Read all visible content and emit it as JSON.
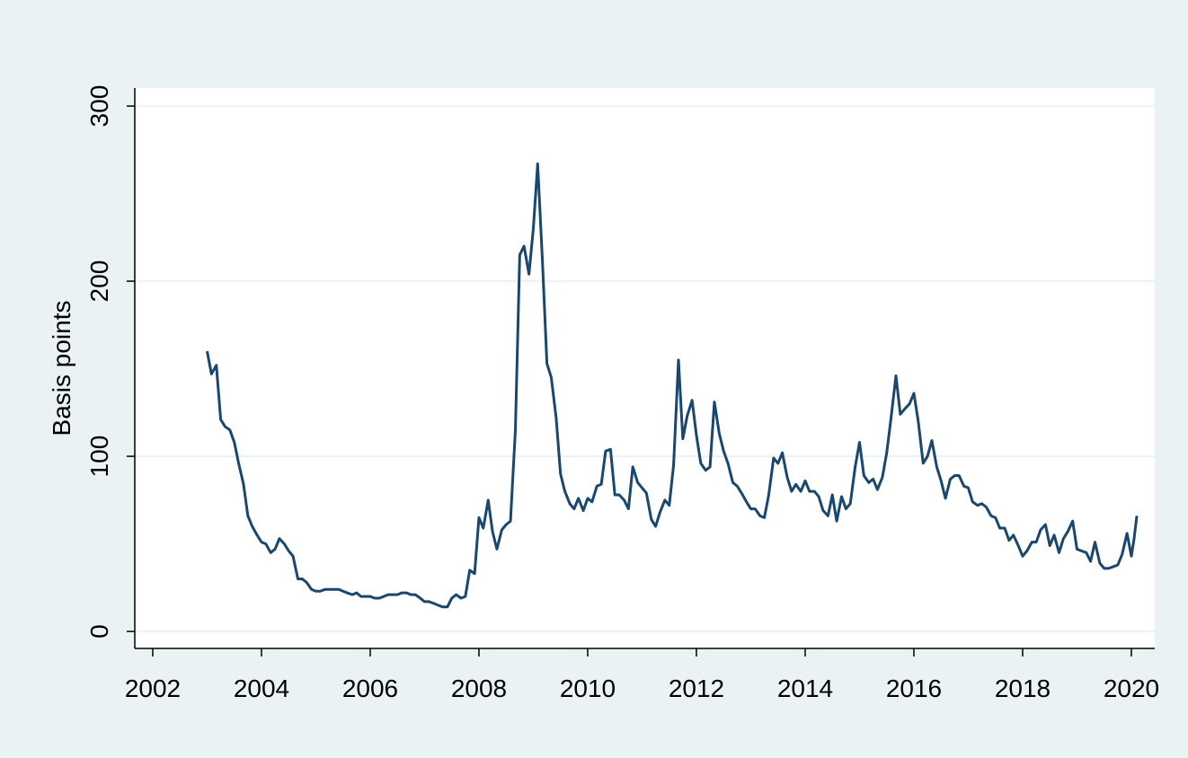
{
  "chart_data": {
    "type": "line",
    "y_label": "Basis points",
    "xlim": [
      2001.67,
      2020.43
    ],
    "ylim": [
      -9.7,
      310.3
    ],
    "xticks": [
      2002,
      2004,
      2006,
      2008,
      2010,
      2012,
      2014,
      2016,
      2018,
      2020
    ],
    "yticks": [
      0,
      100,
      200,
      300
    ],
    "grid": true,
    "x": [
      2003,
      2003.08,
      2003.17,
      2003.25,
      2003.33,
      2003.42,
      2003.5,
      2003.58,
      2003.67,
      2003.75,
      2003.83,
      2003.92,
      2004,
      2004.08,
      2004.17,
      2004.25,
      2004.33,
      2004.42,
      2004.5,
      2004.58,
      2004.67,
      2004.75,
      2004.83,
      2004.92,
      2005,
      2005.08,
      2005.17,
      2005.25,
      2005.33,
      2005.42,
      2005.5,
      2005.58,
      2005.67,
      2005.75,
      2005.83,
      2005.92,
      2006,
      2006.08,
      2006.17,
      2006.25,
      2006.33,
      2006.42,
      2006.5,
      2006.58,
      2006.67,
      2006.75,
      2006.83,
      2006.92,
      2007,
      2007.08,
      2007.17,
      2007.25,
      2007.33,
      2007.42,
      2007.5,
      2007.58,
      2007.67,
      2007.75,
      2007.83,
      2007.92,
      2008,
      2008.08,
      2008.17,
      2008.25,
      2008.33,
      2008.42,
      2008.5,
      2008.58,
      2008.67,
      2008.75,
      2008.83,
      2008.92,
      2009,
      2009.08,
      2009.17,
      2009.25,
      2009.33,
      2009.42,
      2009.5,
      2009.58,
      2009.67,
      2009.75,
      2009.83,
      2009.92,
      2010,
      2010.08,
      2010.17,
      2010.25,
      2010.33,
      2010.42,
      2010.5,
      2010.58,
      2010.67,
      2010.75,
      2010.83,
      2010.92,
      2011,
      2011.08,
      2011.17,
      2011.25,
      2011.33,
      2011.42,
      2011.5,
      2011.58,
      2011.67,
      2011.75,
      2011.83,
      2011.92,
      2012,
      2012.08,
      2012.17,
      2012.25,
      2012.33,
      2012.42,
      2012.5,
      2012.58,
      2012.67,
      2012.75,
      2012.83,
      2012.92,
      2013,
      2013.08,
      2013.17,
      2013.25,
      2013.33,
      2013.42,
      2013.5,
      2013.58,
      2013.67,
      2013.75,
      2013.83,
      2013.92,
      2014,
      2014.08,
      2014.17,
      2014.25,
      2014.33,
      2014.42,
      2014.5,
      2014.58,
      2014.67,
      2014.75,
      2014.83,
      2014.92,
      2015,
      2015.08,
      2015.17,
      2015.25,
      2015.33,
      2015.42,
      2015.5,
      2015.58,
      2015.67,
      2015.75,
      2015.83,
      2015.92,
      2016,
      2016.08,
      2016.17,
      2016.25,
      2016.33,
      2016.42,
      2016.5,
      2016.58,
      2016.67,
      2016.75,
      2016.83,
      2016.92,
      2017,
      2017.08,
      2017.17,
      2017.25,
      2017.33,
      2017.42,
      2017.5,
      2017.58,
      2017.67,
      2017.75,
      2017.83,
      2017.92,
      2018,
      2018.08,
      2018.17,
      2018.25,
      2018.33,
      2018.42,
      2018.5,
      2018.58,
      2018.67,
      2018.75,
      2018.83,
      2018.92,
      2019,
      2019.08,
      2019.17,
      2019.25,
      2019.33,
      2019.42,
      2019.5,
      2019.58,
      2019.67,
      2019.75,
      2019.83,
      2019.92,
      2020,
      2020.05,
      2020.1
    ],
    "series": [
      {
        "color": "#1a476f",
        "values": [
          160,
          147,
          152,
          121,
          117,
          115,
          108,
          96,
          84,
          66,
          60,
          55,
          51,
          50,
          45,
          47,
          53,
          50,
          46,
          43,
          30,
          30,
          28,
          24,
          23,
          23,
          24,
          24,
          24,
          24,
          23,
          22,
          21,
          22,
          20,
          20,
          20,
          19,
          19,
          20,
          21,
          21,
          21,
          22,
          22,
          21,
          21,
          19,
          17,
          17,
          16,
          15,
          14,
          14,
          19,
          21,
          19,
          20,
          35,
          33,
          65,
          59,
          75,
          57,
          47,
          58,
          61,
          63,
          115,
          215,
          220,
          204,
          230,
          267,
          210,
          153,
          145,
          122,
          90,
          80,
          73,
          70,
          76,
          69,
          76,
          74,
          83,
          84,
          103,
          104,
          78,
          78,
          75,
          70,
          94,
          85,
          82,
          79,
          64,
          60,
          68,
          75,
          72,
          95,
          155,
          110,
          123,
          132,
          112,
          96,
          92,
          94,
          131,
          113,
          103,
          96,
          85,
          83,
          79,
          74,
          70,
          70,
          66,
          65,
          78,
          99,
          96,
          102,
          88,
          80,
          84,
          80,
          86,
          80,
          80,
          77,
          69,
          66,
          78,
          63,
          77,
          70,
          73,
          94,
          108,
          89,
          85,
          87,
          81,
          88,
          102,
          122,
          146,
          124,
          127,
          130,
          136,
          120,
          96,
          100,
          109,
          94,
          86,
          76,
          87,
          89,
          89,
          83,
          82,
          74,
          72,
          73,
          71,
          66,
          65,
          59,
          59,
          52,
          55,
          49,
          43,
          46,
          51,
          51,
          58,
          61,
          49,
          55,
          45,
          53,
          57,
          63,
          47,
          46,
          45,
          40,
          51,
          39,
          36,
          36,
          37,
          38,
          44,
          56,
          43,
          53,
          66
        ]
      }
    ]
  }
}
